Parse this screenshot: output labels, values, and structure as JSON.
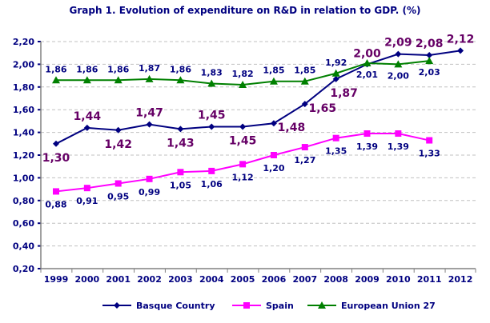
{
  "chart_data": {
    "type": "line",
    "title": "Graph 1. Evolution of expenditure on R&D in relation to GDP. (%)",
    "xlabel": "",
    "ylabel": "",
    "categories": [
      "1999",
      "2000",
      "2001",
      "2002",
      "2003",
      "2004",
      "2005",
      "2006",
      "2007",
      "2008",
      "2009",
      "2010",
      "2011",
      "2012"
    ],
    "ylim": [
      0.2,
      2.2
    ],
    "yticks": [
      "0,20",
      "0,40",
      "0,60",
      "0,80",
      "1,00",
      "1,20",
      "1,40",
      "1,60",
      "1,80",
      "2,00",
      "2,20"
    ],
    "grid": true,
    "legend": "bottom",
    "series": [
      {
        "name": "Basque Country",
        "color": "#000080",
        "marker": "diamond",
        "label_color": "#660066",
        "values": [
          1.3,
          1.44,
          1.42,
          1.47,
          1.43,
          1.45,
          1.45,
          1.48,
          1.65,
          1.87,
          2.0,
          2.09,
          2.08,
          2.12
        ],
        "labels": [
          "1,30",
          "1,44",
          "1,42",
          "1,47",
          "1,43",
          "1,45",
          "1,45",
          "1,48",
          "1,65",
          "1,87",
          "2,00",
          "2,09",
          "2,08",
          "2,12"
        ]
      },
      {
        "name": "Spain",
        "color": "#FF00FF",
        "marker": "square",
        "label_color": "#000080",
        "values": [
          0.88,
          0.91,
          0.95,
          0.99,
          1.05,
          1.06,
          1.12,
          1.2,
          1.27,
          1.35,
          1.39,
          1.39,
          1.33,
          null
        ],
        "labels": [
          "0,88",
          "0,91",
          "0,95",
          "0,99",
          "1,05",
          "1,06",
          "1,12",
          "1,20",
          "1,27",
          "1,35",
          "1,39",
          "1,39",
          "1,33",
          null
        ]
      },
      {
        "name": "European Union 27",
        "color": "#008000",
        "marker": "triangle",
        "label_color": "#000080",
        "values": [
          1.86,
          1.86,
          1.86,
          1.87,
          1.86,
          1.83,
          1.82,
          1.85,
          1.85,
          1.92,
          2.01,
          2.0,
          2.03,
          null
        ],
        "labels": [
          "1,86",
          "1,86",
          "1,86",
          "1,87",
          "1,86",
          "1,83",
          "1,82",
          "1,85",
          "1,85",
          "1,92",
          "2,01",
          "2,00",
          "2,03",
          null
        ]
      }
    ]
  }
}
